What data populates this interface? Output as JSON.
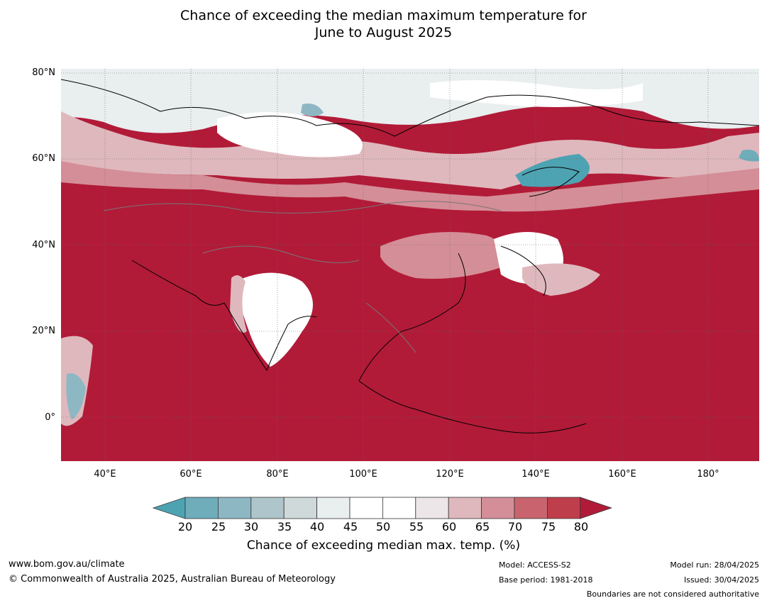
{
  "title": {
    "line1": "Chance of exceeding the median maximum temperature for",
    "line2": "June to August 2025"
  },
  "map": {
    "region": "Asia",
    "background_color": "#b11b38",
    "lat_labels": [
      "80°N",
      "60°N",
      "40°N",
      "20°N",
      "0°"
    ],
    "lon_labels": [
      "40°E",
      "60°E",
      "80°E",
      "100°E",
      "120°E",
      "140°E",
      "160°E",
      "180°"
    ]
  },
  "colorbar": {
    "ticks": [
      "20",
      "25",
      "30",
      "35",
      "40",
      "45",
      "50",
      "55",
      "60",
      "65",
      "70",
      "75",
      "80"
    ],
    "colors": [
      "#4ea3b3",
      "#6fadbb",
      "#8db8c3",
      "#aec5cb",
      "#d0d9da",
      "#e9eeef",
      "#ffffff",
      "#ffffff",
      "#ece6e8",
      "#dfb8bd",
      "#d48e97",
      "#c9646f",
      "#bf3e4b",
      "#b11b38"
    ],
    "label": "Chance of exceeding median max. temp. (%)"
  },
  "footer": {
    "url": "www.bom.gov.au/climate",
    "copyright": "© Commonwealth of Australia 2025, Australian Bureau of Meteorology",
    "model": "Model: ACCESS-S2",
    "base_period": "Base period: 1981-2018",
    "model_run": "Model run: 28/04/2025",
    "issued": "Issued: 30/04/2025",
    "disclaimer": "Boundaries are not considered authoritative"
  }
}
